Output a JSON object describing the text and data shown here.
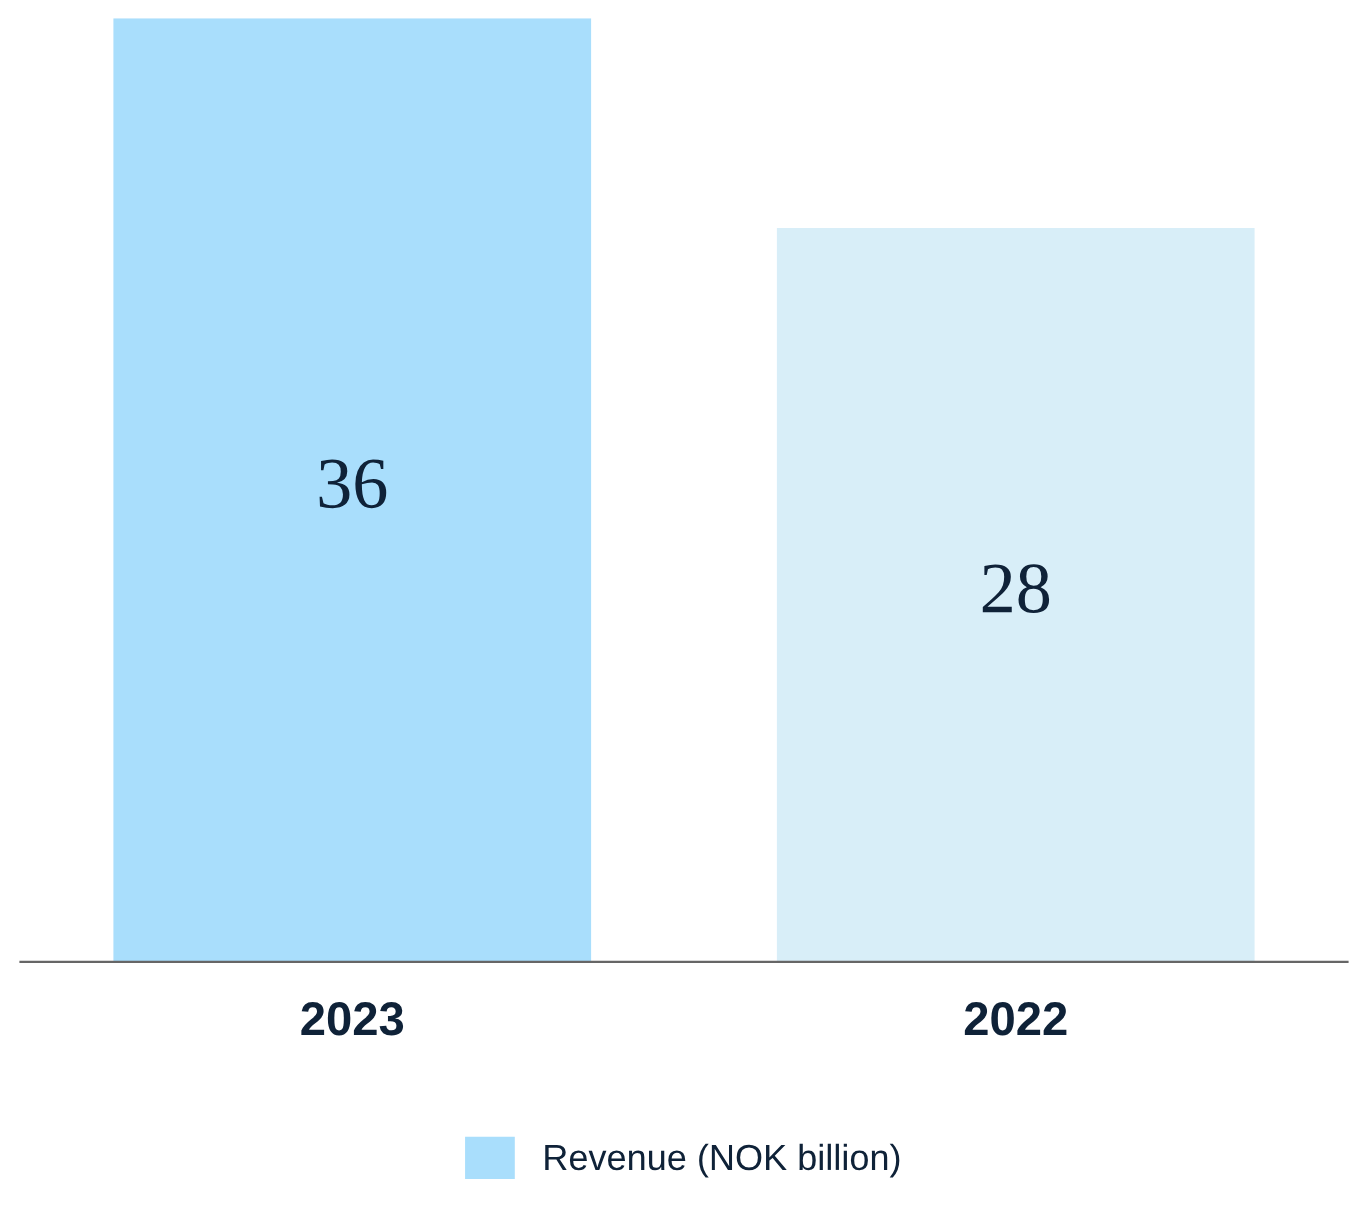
{
  "chart_data": {
    "type": "bar",
    "categories": [
      "2023",
      "2022"
    ],
    "series": [
      {
        "name": "Revenue (NOK billion)",
        "color": "#a9defc",
        "colors": [
          "#a9defc",
          "#d8eef8"
        ],
        "values": [
          36,
          28
        ]
      }
    ],
    "data_labels": true,
    "legend": "bottom",
    "grid": false
  }
}
